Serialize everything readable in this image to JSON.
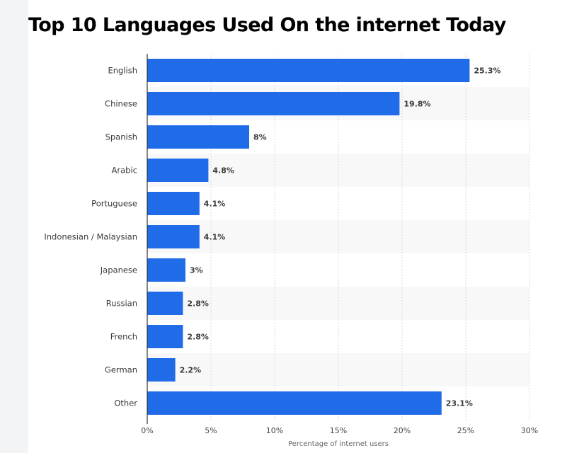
{
  "title": "Top 10 Languages Used On the internet Today",
  "chart_data": {
    "type": "bar",
    "orientation": "horizontal",
    "title": "Top 10 Languages Used On the internet Today",
    "categories": [
      "English",
      "Chinese",
      "Spanish",
      "Arabic",
      "Portuguese",
      "Indonesian / Malaysian",
      "Japanese",
      "Russian",
      "French",
      "German",
      "Other"
    ],
    "values": [
      25.3,
      19.8,
      8,
      4.8,
      4.1,
      4.1,
      3,
      2.8,
      2.8,
      2.2,
      23.1
    ],
    "value_labels": [
      "25.3%",
      "19.8%",
      "8%",
      "4.8%",
      "4.1%",
      "4.1%",
      "3%",
      "2.8%",
      "2.8%",
      "2.2%",
      "23.1%"
    ],
    "xlabel": "Percentage of internet users",
    "ylabel": "",
    "xlim": [
      0,
      30
    ],
    "xticks": [
      0,
      5,
      10,
      15,
      20,
      25,
      30
    ],
    "xtick_labels": [
      "0%",
      "5%",
      "10%",
      "15%",
      "20%",
      "25%",
      "30%"
    ],
    "grid": "vertical dotted",
    "bar_color": "#1f6be8",
    "stripe_color": "#f8f8f8"
  }
}
